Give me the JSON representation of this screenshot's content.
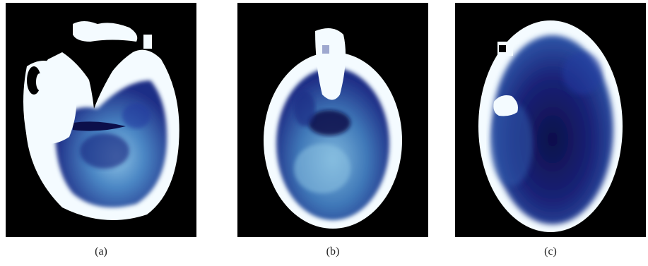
{
  "figure": {
    "panels": [
      {
        "id": "a",
        "caption": "(a)"
      },
      {
        "id": "b",
        "caption": "(b)"
      },
      {
        "id": "c",
        "caption": "(c)"
      }
    ],
    "colors": {
      "background": "#000000",
      "bone": "#f4fbff",
      "tissue_light": "#7fb8dd",
      "tissue_mid": "#3f78b8",
      "tissue_dark": "#1f2d86",
      "tissue_deep": "#0c0f4a"
    }
  }
}
